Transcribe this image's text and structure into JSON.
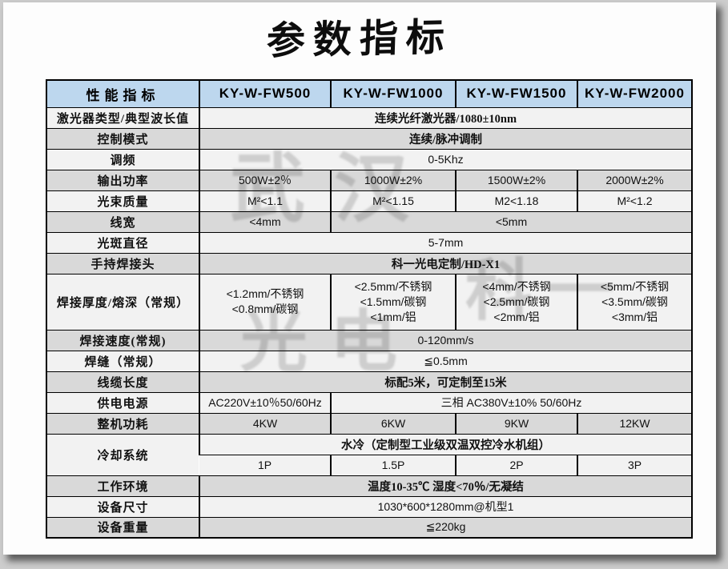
{
  "page": {
    "title": "参数指标"
  },
  "colors": {
    "header_bg": "#bdd7ee",
    "row_light": "#f2f2f2",
    "row_dark": "#d9d9d9",
    "border": "#000000"
  },
  "watermark": {
    "part1": "武汉",
    "part2": "科一",
    "part3": "光电"
  },
  "table": {
    "header": [
      "性能指标",
      "KY-W-FW500",
      "KY-W-FW1000",
      "KY-W-FW1500",
      "KY-W-FW2000"
    ],
    "rows": [
      {
        "label": "激光器类型/典型波长值",
        "cells": [
          {
            "text": "连续光纤激光器/1080±10nm",
            "span": 4,
            "cjk": true
          }
        ]
      },
      {
        "label": "控制模式",
        "cells": [
          {
            "text": "连续/脉冲调制",
            "span": 4,
            "cjk": true
          }
        ]
      },
      {
        "label": "调频",
        "cells": [
          {
            "text": "0-5Khz",
            "span": 4
          }
        ]
      },
      {
        "label": "输出功率",
        "cells": [
          {
            "text": "500W±2％"
          },
          {
            "text": "1000W±2%"
          },
          {
            "text": "1500W±2%"
          },
          {
            "text": "2000W±2%"
          }
        ]
      },
      {
        "label": "光束质量",
        "cells": [
          {
            "text": "M²<1.1"
          },
          {
            "text": "M²<1.15"
          },
          {
            "text": "M2<1.18"
          },
          {
            "text": "M²<1.2"
          }
        ]
      },
      {
        "label": "线宽",
        "cells": [
          {
            "text": "<4mm",
            "span": 1
          },
          {
            "text": "<5mm",
            "span": 3
          }
        ]
      },
      {
        "label": "光斑直径",
        "cells": [
          {
            "text": "5-7mm",
            "span": 4
          }
        ]
      },
      {
        "label": "手持焊接头",
        "cells": [
          {
            "text": "科一光电定制/HD-X1",
            "span": 4,
            "cjk": true
          }
        ]
      },
      {
        "label": "焊接厚度/熔深（常规）",
        "cells": [
          {
            "lines": [
              "<1.2mm/不锈钢",
              "<0.8mm/碳钢"
            ]
          },
          {
            "lines": [
              "<2.5mm/不锈钢",
              "<1.5mm/碳钢",
              "<1mm/铝"
            ]
          },
          {
            "lines": [
              "<4mm/不锈钢",
              "<2.5mm/碳钢",
              "<2mm/铝"
            ]
          },
          {
            "lines": [
              "<5mm/不锈钢",
              "<3.5mm/碳钢",
              "<3mm/铝"
            ]
          }
        ]
      },
      {
        "label": "焊接速度(常规)",
        "cells": [
          {
            "text": "0-120mm/s",
            "span": 4
          }
        ]
      },
      {
        "label": "焊缝（常规）",
        "cells": [
          {
            "text": "≦0.5mm",
            "span": 4
          }
        ]
      },
      {
        "label": "线缆长度",
        "cells": [
          {
            "text": "标配5米，可定制至15米",
            "span": 4,
            "cjk": true
          }
        ]
      },
      {
        "label": "供电电源",
        "cells": [
          {
            "text": "AC220V±10％50/60Hz",
            "span": 1
          },
          {
            "text": "三相 AC380V±10%  50/60Hz",
            "span": 3
          }
        ]
      },
      {
        "label": "整机功耗",
        "cells": [
          {
            "text": "4KW"
          },
          {
            "text": "6KW"
          },
          {
            "text": "9KW"
          },
          {
            "text": "12KW"
          }
        ]
      },
      {
        "label": "冷却系统",
        "subrows": [
          [
            {
              "text": "水冷（定制型工业级双温双控冷水机组）",
              "span": 4,
              "cjk": true
            }
          ],
          [
            {
              "text": "1P"
            },
            {
              "text": "1.5P"
            },
            {
              "text": "2P"
            },
            {
              "text": "3P"
            }
          ]
        ]
      },
      {
        "label": "工作环境",
        "cells": [
          {
            "text": "温度10-35℃ 湿度<70％/无凝结",
            "span": 4,
            "cjk": true
          }
        ]
      },
      {
        "label": "设备尺寸",
        "cells": [
          {
            "text": "1030*600*1280mm@机型1",
            "span": 4
          }
        ]
      },
      {
        "label": "设备重量",
        "cells": [
          {
            "text": "≦220kg",
            "span": 4
          }
        ]
      }
    ]
  }
}
